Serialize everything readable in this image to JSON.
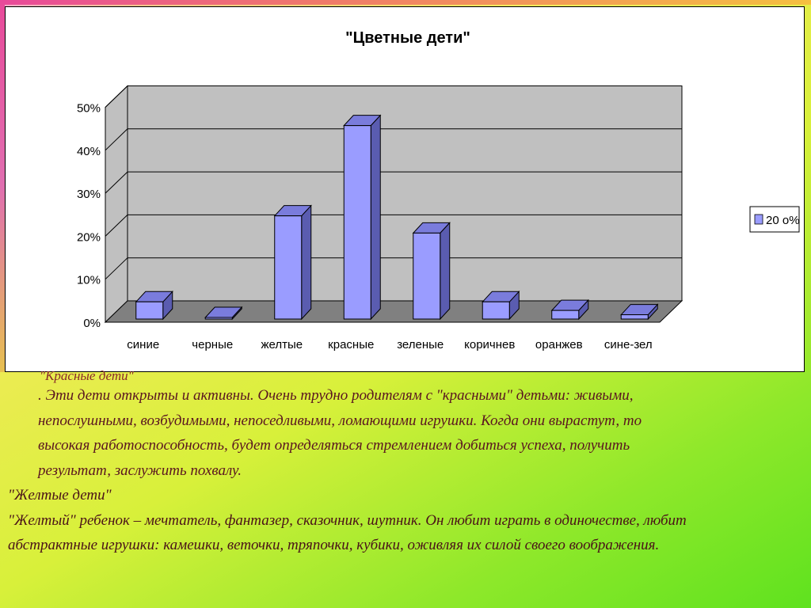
{
  "chart_data": {
    "type": "bar",
    "title": "\"Цветные дети\"",
    "categories": [
      "синие",
      "черные",
      "желтые",
      "красные",
      "зеленые",
      "коричнев",
      "оранжев",
      "сине-зел"
    ],
    "series": [
      {
        "name": "20 о%",
        "values": [
          4,
          0,
          24,
          45,
          20,
          4,
          2,
          1
        ]
      }
    ],
    "ylim": [
      0,
      50
    ],
    "yticks": [
      "0%",
      "10%",
      "20%",
      "30%",
      "40%",
      "50%"
    ],
    "grid": true,
    "legend": "right",
    "colors": {
      "bar_front": "#9a9cff",
      "bar_side": "#5a5cb0",
      "bar_top": "#7a7cdc",
      "wall": "#c0c0c0",
      "floor": "#808080"
    }
  },
  "text": {
    "red_heading": "\"Красные дети\"",
    "red_lines": [
      ". Эти дети открыты и активны. Очень трудно родителям с \"красными\" детьми: живыми,",
      "непослушными, возбудимыми, непоседливыми, ломающими игрушки. Когда они вырастут, то",
      "высокая работоспособность, будет определяться стремлением добиться успеха, получить",
      "результат, заслужить похвалу."
    ],
    "yellow_heading": "\"Желтые дети\"",
    "yellow_lines": [
      "\"Желтый\" ребенок – мечтатель, фантазер, сказочник, шутник. Он любит играть в одиночестве, любит",
      "абстрактные игрушки: камешки, веточки, тряпочки, кубики, оживляя их силой своего воображения."
    ]
  }
}
